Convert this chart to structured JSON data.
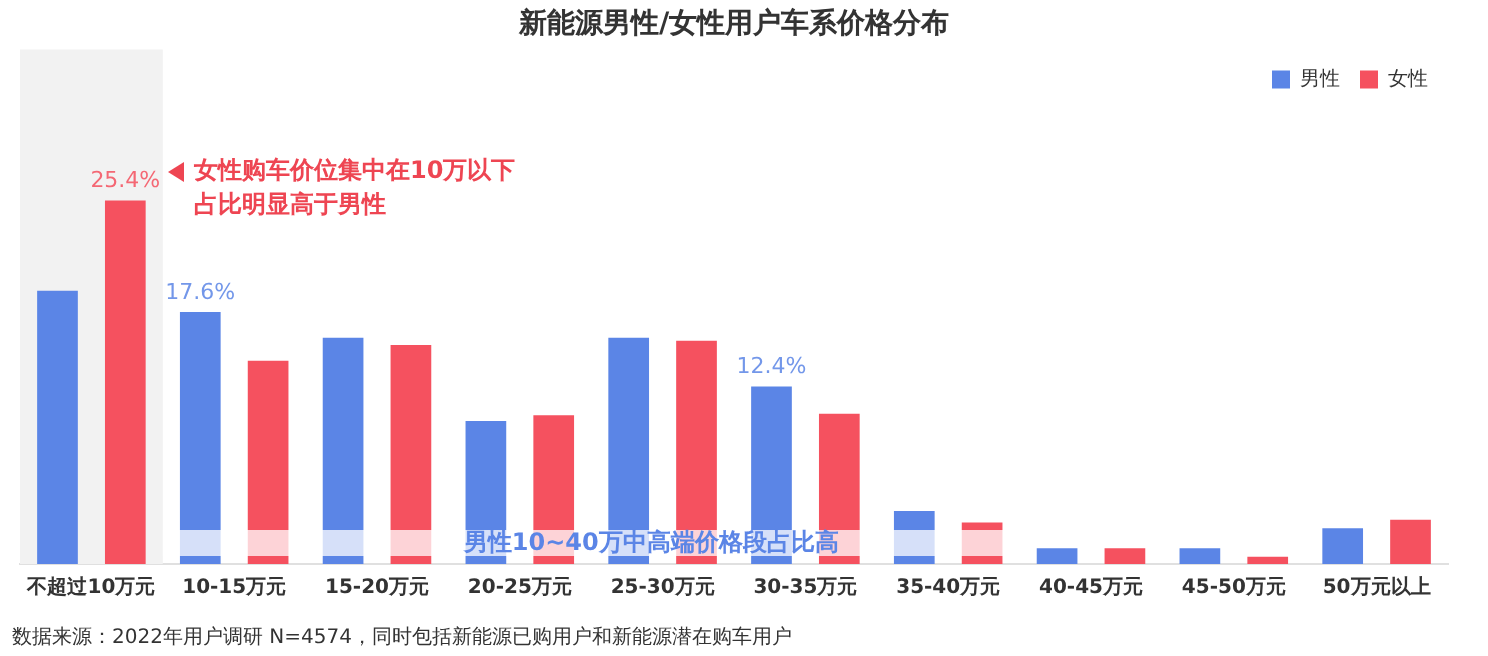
{
  "chart_data": {
    "type": "bar",
    "title": "新能源男性/女性用户车系价格分布",
    "categories": [
      "不超过10万元",
      "10-15万元",
      "15-20万元",
      "20-25万元",
      "25-30万元",
      "30-35万元",
      "35-40万元",
      "40-45万元",
      "45-50万元",
      "50万元以上"
    ],
    "series": [
      {
        "name": "男性",
        "color": "#5b85e6",
        "values": [
          19.1,
          17.6,
          15.8,
          10.0,
          15.8,
          12.4,
          3.7,
          1.1,
          1.1,
          2.5
        ],
        "value_labels": [
          null,
          "17.6%",
          null,
          null,
          null,
          "12.4%",
          null,
          null,
          null,
          null
        ]
      },
      {
        "name": "女性",
        "color": "#f5515f",
        "values": [
          25.4,
          14.2,
          15.3,
          10.4,
          15.6,
          10.5,
          2.9,
          1.1,
          0.5,
          3.1
        ],
        "value_labels": [
          "25.4%",
          null,
          null,
          null,
          null,
          null,
          null,
          null,
          null,
          null
        ]
      }
    ],
    "bands": [
      {
        "axis": "x",
        "from": "不超过10万元",
        "to": "不超过10万元",
        "color": "#f2f2f2"
      },
      {
        "axis": "x",
        "from": "10-15万元",
        "to": "35-40万元",
        "label": "男性10~40万中高端价格段占比高",
        "color": "#ffffff"
      }
    ],
    "annotations": [
      "女性购车价位集中在10万以下占比明显高于男性",
      "数据来源：2022年用户调研 N=4574，同时包括新能源已购用户和新能源潜在购车用户"
    ],
    "legend": "top right",
    "grid": false
  }
}
